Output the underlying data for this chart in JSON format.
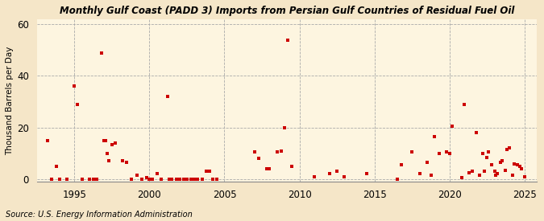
{
  "title": "Gulf Coast (PADD 3) Imports from Persian Gulf Countries of Residual Fuel Oil",
  "title_prefix": "Monthly ",
  "ylabel": "Thousand Barrels per Day",
  "source": "Source: U.S. Energy Information Administration",
  "background_color": "#f5e6c8",
  "plot_background_color": "#fdf5e0",
  "marker_color": "#cc0000",
  "marker_size": 6,
  "xlim": [
    1992.5,
    2025.8
  ],
  "ylim": [
    -1,
    62
  ],
  "yticks": [
    0,
    20,
    40,
    60
  ],
  "xticks": [
    1995,
    2000,
    2005,
    2010,
    2015,
    2020,
    2025
  ],
  "data_points": [
    [
      1993.2,
      15.0
    ],
    [
      1993.8,
      5.0
    ],
    [
      1995.0,
      36.0
    ],
    [
      1995.2,
      29.0
    ],
    [
      1996.8,
      49.0
    ],
    [
      1997.0,
      15.0
    ],
    [
      1997.1,
      15.0
    ],
    [
      1997.2,
      10.0
    ],
    [
      1997.3,
      7.0
    ],
    [
      1997.5,
      13.5
    ],
    [
      1997.7,
      14.0
    ],
    [
      1998.2,
      7.0
    ],
    [
      1998.5,
      6.5
    ],
    [
      1999.2,
      1.5
    ],
    [
      2001.2,
      32.0
    ],
    [
      1999.8,
      0.5
    ],
    [
      2000.5,
      2.0
    ],
    [
      1993.5,
      0.0
    ],
    [
      1994.0,
      0.0
    ],
    [
      1994.5,
      0.0
    ],
    [
      1995.5,
      0.0
    ],
    [
      1996.0,
      0.0
    ],
    [
      1996.3,
      0.0
    ],
    [
      1996.5,
      0.0
    ],
    [
      1998.8,
      0.0
    ],
    [
      1999.5,
      0.0
    ],
    [
      2000.0,
      0.0
    ],
    [
      2000.2,
      0.0
    ],
    [
      2000.8,
      0.0
    ],
    [
      2001.3,
      0.0
    ],
    [
      2001.5,
      0.0
    ],
    [
      2001.8,
      0.0
    ],
    [
      2002.0,
      0.0
    ],
    [
      2002.3,
      0.0
    ],
    [
      2002.5,
      0.0
    ],
    [
      2002.8,
      0.0
    ],
    [
      2003.0,
      0.0
    ],
    [
      2003.2,
      0.0
    ],
    [
      2003.5,
      0.0
    ],
    [
      2003.8,
      3.0
    ],
    [
      2004.0,
      3.0
    ],
    [
      2004.2,
      0.0
    ],
    [
      2004.5,
      0.0
    ],
    [
      2007.0,
      10.5
    ],
    [
      2007.3,
      8.0
    ],
    [
      2007.8,
      4.0
    ],
    [
      2008.0,
      4.0
    ],
    [
      2008.5,
      10.5
    ],
    [
      2008.8,
      11.0
    ],
    [
      2009.0,
      20.0
    ],
    [
      2009.2,
      54.0
    ],
    [
      2009.5,
      5.0
    ],
    [
      2011.0,
      1.0
    ],
    [
      2012.0,
      2.0
    ],
    [
      2012.5,
      3.0
    ],
    [
      2013.0,
      1.0
    ],
    [
      2014.5,
      2.0
    ],
    [
      2016.5,
      0.0
    ],
    [
      2016.8,
      5.5
    ],
    [
      2017.5,
      10.5
    ],
    [
      2018.0,
      2.0
    ],
    [
      2018.5,
      6.5
    ],
    [
      2018.8,
      1.5
    ],
    [
      2019.0,
      16.5
    ],
    [
      2019.3,
      10.0
    ],
    [
      2019.8,
      10.5
    ],
    [
      2020.0,
      10.0
    ],
    [
      2020.2,
      20.5
    ],
    [
      2020.8,
      0.5
    ],
    [
      2021.0,
      29.0
    ],
    [
      2021.3,
      2.5
    ],
    [
      2021.5,
      3.0
    ],
    [
      2021.8,
      18.0
    ],
    [
      2022.0,
      1.5
    ],
    [
      2022.2,
      10.0
    ],
    [
      2022.3,
      3.0
    ],
    [
      2022.5,
      8.5
    ],
    [
      2022.6,
      10.5
    ],
    [
      2022.8,
      5.5
    ],
    [
      2023.0,
      3.0
    ],
    [
      2023.1,
      1.5
    ],
    [
      2023.2,
      2.0
    ],
    [
      2023.4,
      6.5
    ],
    [
      2023.5,
      7.0
    ],
    [
      2023.7,
      3.5
    ],
    [
      2023.8,
      11.5
    ],
    [
      2024.0,
      12.0
    ],
    [
      2024.2,
      1.5
    ],
    [
      2024.3,
      6.0
    ],
    [
      2024.5,
      5.5
    ],
    [
      2024.7,
      5.0
    ],
    [
      2024.8,
      4.0
    ],
    [
      2025.0,
      1.0
    ]
  ]
}
